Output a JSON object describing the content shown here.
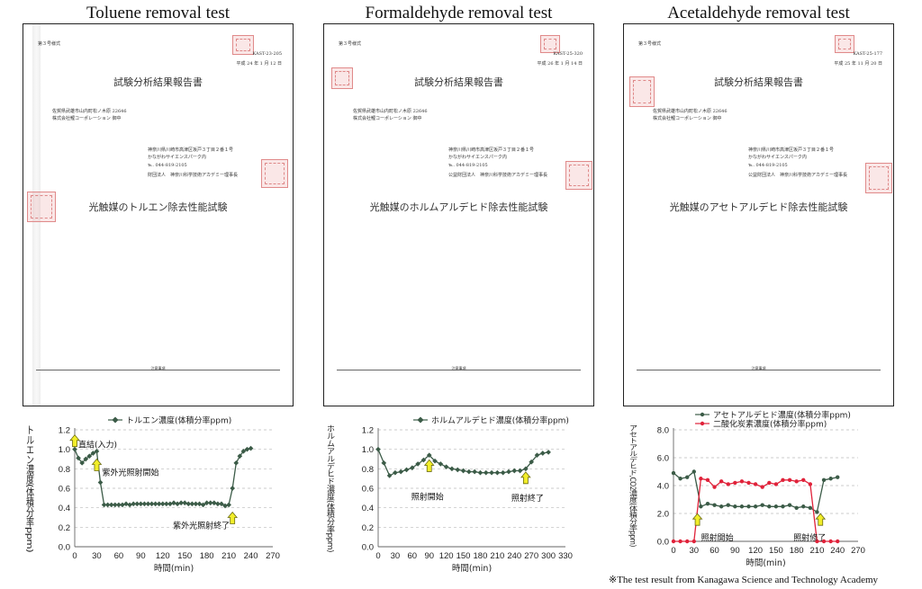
{
  "columns": [
    {
      "title": "Toluene removal test",
      "report": {
        "form": "第３号様式",
        "number": "KAST-23-205",
        "date": "平成 24 年 1 月 12 日",
        "title": "試験分析結果報告書",
        "addr1": "佐賀県武雄市山内町松ノ木原 22646",
        "addr2": "株式会社鯉コーポレーション 御中",
        "lab1": "神奈川県川崎市高津区坂戸３丁目２番１号",
        "lab2": "かながわサイエンスパーク内",
        "lab3": "℡. 044-819-2105",
        "lab4": "財団法人　神奈川科学技術アカデミー理事長",
        "subject": "光触媒のトルエン除去性能試験",
        "note_head": "注意事項"
      }
    },
    {
      "title": "Formaldehyde removal test",
      "report": {
        "form": "第３号様式",
        "number": "KAST-25-320",
        "date": "平成 26 年 1 月 14 日",
        "title": "試験分析結果報告書",
        "addr1": "佐賀県武雄市山内町松ノ木原 22646",
        "addr2": "株式会社鯉コーポレーション 御中",
        "lab1": "神奈川県川崎市高津区坂戸３丁目２番１号",
        "lab2": "かながわサイエンスパーク内",
        "lab3": "℡. 044-819-2105",
        "lab4": "公益財団法人　神奈川科学技術アカデミー理事長",
        "subject": "光触媒のホルムアルデヒド除去性能試験",
        "note_head": "注意事項"
      }
    },
    {
      "title": "Acetaldehyde removal test",
      "report": {
        "form": "第３号様式",
        "number": "KAST-25-177",
        "date": "平成 25 年 11 月 20 日",
        "title": "試験分析結果報告書",
        "addr1": "佐賀県武雄市山内町松ノ木原 22646",
        "addr2": "株式会社鯉コーポレーション 御中",
        "lab1": "神奈川県川崎市高津区坂戸３丁目２番１号",
        "lab2": "かながわサイエンスパーク内",
        "lab3": "℡. 044-819-2105",
        "lab4": "公益財団法人　神奈川科学技術アカデミー理事長",
        "subject": "光触媒のアセトアルデヒド除去性能試験",
        "note_head": "注意事項"
      }
    }
  ],
  "colors": {
    "series_dark": "#3b5b47",
    "series_red": "#e0223a",
    "arrow_yellow": "#f2ee2a",
    "grid": "#bbbbbb"
  },
  "chart_data": [
    {
      "type": "line",
      "title": "",
      "xlabel": "時間(min)",
      "ylabel": "トルエン濃度(体積分率ppm)",
      "xlim": [
        0,
        270
      ],
      "ylim": [
        0,
        1.2
      ],
      "xticks": [
        0,
        30,
        60,
        90,
        120,
        150,
        180,
        210,
        240,
        270
      ],
      "yticks": [
        0.0,
        0.2,
        0.4,
        0.6,
        0.8,
        1.0,
        1.2
      ],
      "ytick_decimals": 1,
      "legend_position": "top-center",
      "grid": true,
      "series": [
        {
          "name": "トルエン濃度(体積分率ppm)",
          "color": "#3b5b47",
          "x": [
            0,
            5,
            10,
            15,
            20,
            25,
            30,
            35,
            40,
            45,
            50,
            55,
            60,
            65,
            70,
            75,
            80,
            85,
            90,
            95,
            100,
            105,
            110,
            115,
            120,
            125,
            130,
            135,
            140,
            145,
            150,
            155,
            160,
            165,
            170,
            175,
            180,
            185,
            190,
            195,
            200,
            205,
            210,
            215,
            220,
            225,
            230,
            235,
            240
          ],
          "y": [
            1.0,
            0.91,
            0.86,
            0.9,
            0.93,
            0.96,
            0.98,
            0.66,
            0.43,
            0.43,
            0.43,
            0.43,
            0.43,
            0.43,
            0.44,
            0.43,
            0.44,
            0.44,
            0.44,
            0.44,
            0.44,
            0.44,
            0.44,
            0.44,
            0.44,
            0.44,
            0.44,
            0.45,
            0.44,
            0.45,
            0.45,
            0.44,
            0.44,
            0.44,
            0.44,
            0.43,
            0.45,
            0.45,
            0.45,
            0.44,
            0.44,
            0.42,
            0.43,
            0.6,
            0.86,
            0.93,
            0.98,
            1.0,
            1.01
          ]
        }
      ],
      "annotations": [
        {
          "text": "直結(入力)",
          "x": 0,
          "y": 1.0,
          "arrow": "up"
        },
        {
          "text": "紫外光照射開始",
          "x": 30,
          "y": 0.9,
          "arrow": "up"
        },
        {
          "text": "紫外光照射終了",
          "x": 215,
          "y": 0.3,
          "arrow": "up"
        }
      ]
    },
    {
      "type": "line",
      "title": "",
      "xlabel": "時間(min)",
      "ylabel": "ホルムアルデヒド濃度(体積分率ppm)",
      "xlim": [
        0,
        330
      ],
      "ylim": [
        0,
        1.2
      ],
      "xticks": [
        0,
        30,
        60,
        90,
        120,
        150,
        180,
        210,
        240,
        270,
        300,
        330
      ],
      "yticks": [
        0.0,
        0.2,
        0.4,
        0.6,
        0.8,
        1.0,
        1.2
      ],
      "ytick_decimals": 1,
      "legend_position": "top-center",
      "grid": true,
      "series": [
        {
          "name": "ホルムアルデヒド濃度(体積分率ppm)",
          "color": "#3b5b47",
          "x": [
            0,
            10,
            20,
            30,
            40,
            50,
            60,
            70,
            80,
            90,
            100,
            110,
            120,
            130,
            140,
            150,
            160,
            170,
            180,
            190,
            200,
            210,
            220,
            230,
            240,
            250,
            260,
            270,
            280,
            290,
            300
          ],
          "y": [
            1.0,
            0.86,
            0.73,
            0.76,
            0.77,
            0.79,
            0.81,
            0.85,
            0.89,
            0.94,
            0.88,
            0.85,
            0.82,
            0.8,
            0.79,
            0.78,
            0.77,
            0.77,
            0.76,
            0.76,
            0.76,
            0.76,
            0.76,
            0.77,
            0.78,
            0.78,
            0.8,
            0.87,
            0.94,
            0.96,
            0.97
          ]
        }
      ],
      "annotations": [
        {
          "text": "照射開始",
          "x": 90,
          "y": 0.67,
          "arrow": "up"
        },
        {
          "text": "照射終了",
          "x": 260,
          "y": 0.62,
          "arrow": "up"
        }
      ]
    },
    {
      "type": "line",
      "title": "",
      "xlabel": "時間(min)",
      "ylabel": "アセトアルデヒド,CO2濃度(体積分率ppm)",
      "xlim": [
        0,
        270
      ],
      "ylim": [
        0,
        8.0
      ],
      "xticks": [
        0,
        30,
        60,
        90,
        120,
        150,
        180,
        210,
        240,
        270
      ],
      "yticks": [
        0.0,
        2.0,
        4.0,
        6.0,
        8.0
      ],
      "ytick_decimals": 1,
      "legend_position": "top-center",
      "grid": true,
      "series": [
        {
          "name": "アセトアルデヒド濃度(体積分率ppm)",
          "color": "#3b5b47",
          "x": [
            0,
            10,
            20,
            30,
            40,
            50,
            60,
            70,
            80,
            90,
            100,
            110,
            120,
            130,
            140,
            150,
            160,
            170,
            180,
            190,
            200,
            210,
            220,
            230,
            240
          ],
          "y": [
            4.9,
            4.5,
            4.6,
            5.0,
            2.5,
            2.7,
            2.6,
            2.5,
            2.6,
            2.5,
            2.5,
            2.5,
            2.5,
            2.6,
            2.5,
            2.5,
            2.5,
            2.6,
            2.4,
            2.5,
            2.4,
            2.1,
            4.4,
            4.5,
            4.6
          ]
        },
        {
          "name": "二酸化炭素濃度(体積分率ppm)",
          "color": "#e0223a",
          "x": [
            0,
            10,
            20,
            30,
            40,
            50,
            60,
            70,
            80,
            90,
            100,
            110,
            120,
            130,
            140,
            150,
            160,
            170,
            180,
            190,
            200,
            210,
            220,
            230,
            240
          ],
          "y": [
            0.0,
            0.0,
            0.0,
            0.0,
            4.5,
            4.4,
            3.9,
            4.3,
            4.1,
            4.2,
            4.3,
            4.2,
            4.1,
            3.9,
            4.2,
            4.1,
            4.4,
            4.4,
            4.3,
            4.4,
            4.1,
            0.0,
            0.0,
            0.0,
            0.0
          ]
        }
      ],
      "annotations": [
        {
          "text": "照射開始",
          "x": 35,
          "y": 1.6,
          "arrow": "up"
        },
        {
          "text": "照射修了",
          "x": 215,
          "y": 1.6,
          "arrow": "up"
        }
      ]
    }
  ],
  "footnote": "※The test result from Kanagawa Science and Technology Academy"
}
